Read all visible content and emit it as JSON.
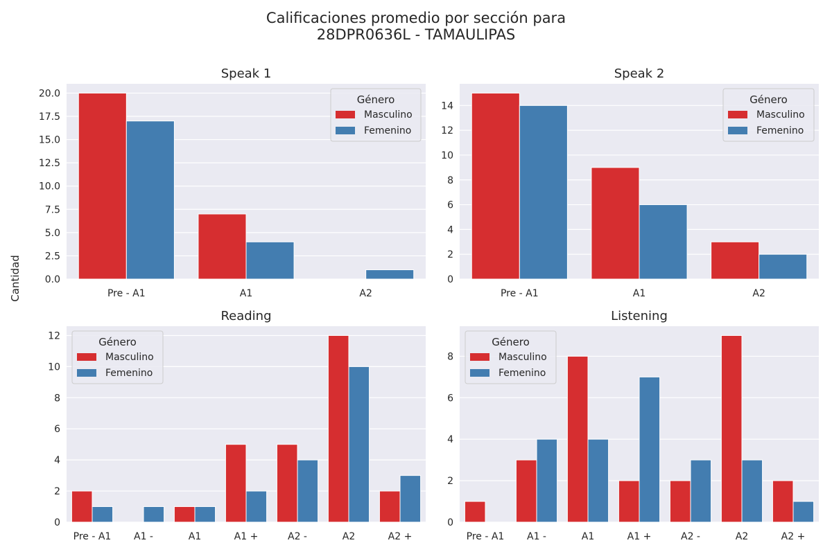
{
  "figure": {
    "suptitle": "Calificaciones promedio por sección para\n28DPR0636L - TAMAULIPAS",
    "ylabel": "Cantidad"
  },
  "colors": {
    "Masculino": "#d62e30",
    "Femenino": "#437db0",
    "plot_bg": "#eaeaf2",
    "grid": "#ffffff",
    "text": "#262626"
  },
  "chart_data": [
    {
      "type": "bar",
      "title": "Speak 1",
      "categories": [
        "Pre - A1",
        "A1",
        "A2"
      ],
      "series": [
        {
          "name": "Masculino",
          "values": [
            20,
            7,
            0
          ]
        },
        {
          "name": "Femenino",
          "values": [
            17,
            4,
            1
          ]
        }
      ],
      "ylim": [
        0,
        21
      ],
      "yticks": [
        0,
        2.5,
        5,
        7.5,
        10,
        12.5,
        15,
        17.5,
        20
      ],
      "ytick_labels": [
        "0.0",
        "2.5",
        "5.0",
        "7.5",
        "10.0",
        "12.5",
        "15.0",
        "17.5",
        "20.0"
      ],
      "legend_title": "Género",
      "legend_loc": "upper right",
      "grid": true
    },
    {
      "type": "bar",
      "title": "Speak 2",
      "categories": [
        "Pre - A1",
        "A1",
        "A2"
      ],
      "series": [
        {
          "name": "Masculino",
          "values": [
            15,
            9,
            3
          ]
        },
        {
          "name": "Femenino",
          "values": [
            14,
            6,
            2
          ]
        }
      ],
      "ylim": [
        0,
        15.75
      ],
      "yticks": [
        0,
        2,
        4,
        6,
        8,
        10,
        12,
        14
      ],
      "ytick_labels": [
        "0",
        "2",
        "4",
        "6",
        "8",
        "10",
        "12",
        "14"
      ],
      "legend_title": "Género",
      "legend_loc": "upper right",
      "grid": true
    },
    {
      "type": "bar",
      "title": "Reading",
      "categories": [
        "Pre - A1",
        "A1 -",
        "A1",
        "A1 +",
        "A2 -",
        "A2",
        "A2 +"
      ],
      "series": [
        {
          "name": "Masculino",
          "values": [
            2,
            0,
            1,
            5,
            5,
            12,
            2
          ]
        },
        {
          "name": "Femenino",
          "values": [
            1,
            1,
            1,
            2,
            4,
            10,
            3
          ]
        }
      ],
      "ylim": [
        0,
        12.6
      ],
      "yticks": [
        0,
        2,
        4,
        6,
        8,
        10,
        12
      ],
      "ytick_labels": [
        "0",
        "2",
        "4",
        "6",
        "8",
        "10",
        "12"
      ],
      "legend_title": "Género",
      "legend_loc": "upper left",
      "grid": true
    },
    {
      "type": "bar",
      "title": "Listening",
      "categories": [
        "Pre - A1",
        "A1 -",
        "A1",
        "A1 +",
        "A2 -",
        "A2",
        "A2 +"
      ],
      "series": [
        {
          "name": "Masculino",
          "values": [
            1,
            3,
            8,
            2,
            2,
            9,
            2
          ]
        },
        {
          "name": "Femenino",
          "values": [
            0,
            4,
            4,
            7,
            3,
            3,
            1
          ]
        }
      ],
      "ylim": [
        0,
        9.45
      ],
      "yticks": [
        0,
        2,
        4,
        6,
        8
      ],
      "ytick_labels": [
        "0",
        "2",
        "4",
        "6",
        "8"
      ],
      "legend_title": "Género",
      "legend_loc": "upper left",
      "grid": true
    }
  ]
}
